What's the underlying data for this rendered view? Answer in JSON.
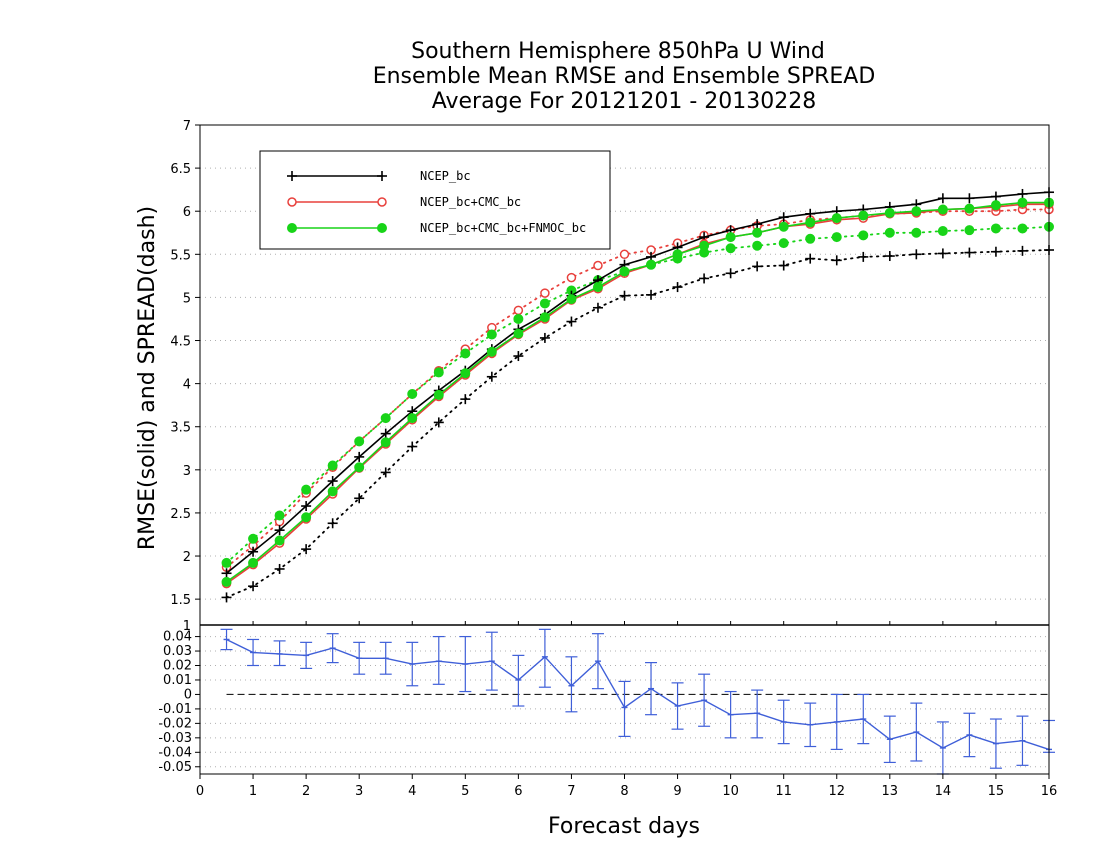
{
  "title": {
    "line1": "Southern Hemisphere 850hPa U Wind",
    "line2": "Ensemble Mean RMSE and Ensemble SPREAD",
    "line3": "Average For 20121201 - 20130228"
  },
  "colors": {
    "ncep_bc": "#000000",
    "ncep_cmc": "#e8403c",
    "ncep_cmc_fnmoc": "#18d418",
    "diff": "#3f5fd8",
    "zero_line": "#000000",
    "grid": "#b0b0b0"
  },
  "chart_data": [
    {
      "type": "line",
      "title": "Southern Hemisphere 850hPa U Wind Ensemble Mean RMSE and Ensemble SPREAD Average For 20121201 - 20130228",
      "ylabel": "RMSE(solid) and SPREAD(dash)",
      "xlim": [
        0,
        16
      ],
      "ylim": [
        1.2,
        7
      ],
      "yticks": [
        "1.5",
        "2",
        "2.5",
        "3",
        "3.5",
        "4",
        "4.5",
        "5",
        "5.5",
        "6",
        "6.5",
        "7"
      ],
      "grid": "horizontal dotted",
      "legend_position": "top-left",
      "x": [
        0.5,
        1,
        1.5,
        2,
        2.5,
        3,
        3.5,
        4,
        4.5,
        5,
        5.5,
        6,
        6.5,
        7,
        7.5,
        8,
        8.5,
        9,
        9.5,
        10,
        10.5,
        11,
        11.5,
        12,
        12.5,
        13,
        13.5,
        14,
        14.5,
        15,
        15.5,
        16
      ],
      "series": [
        {
          "name": "NCEP_bc",
          "style": "solid",
          "marker": "plus",
          "values": [
            1.8,
            2.05,
            2.3,
            2.58,
            2.87,
            3.15,
            3.42,
            3.68,
            3.92,
            4.15,
            4.4,
            4.63,
            4.8,
            5.02,
            5.2,
            5.38,
            5.47,
            5.58,
            5.7,
            5.78,
            5.85,
            5.93,
            5.97,
            6.0,
            6.02,
            6.05,
            6.08,
            6.15,
            6.15,
            6.17,
            6.2,
            6.22
          ]
        },
        {
          "name": "NCEP_bc",
          "style": "dash",
          "marker": "plus",
          "values": [
            1.52,
            1.65,
            1.85,
            2.08,
            2.38,
            2.67,
            2.97,
            3.27,
            3.55,
            3.82,
            4.08,
            4.32,
            4.53,
            4.72,
            4.88,
            5.02,
            5.03,
            5.12,
            5.22,
            5.28,
            5.36,
            5.37,
            5.45,
            5.43,
            5.47,
            5.48,
            5.5,
            5.51,
            5.52,
            5.53,
            5.54,
            5.55
          ]
        },
        {
          "name": "NCEP_bc+CMC_bc",
          "style": "solid",
          "marker": "open-circle",
          "values": [
            1.68,
            1.9,
            2.15,
            2.43,
            2.72,
            3.02,
            3.3,
            3.58,
            3.85,
            4.1,
            4.35,
            4.57,
            4.75,
            4.97,
            5.1,
            5.28,
            5.38,
            5.5,
            5.62,
            5.7,
            5.75,
            5.82,
            5.85,
            5.9,
            5.92,
            5.97,
            5.98,
            6.02,
            6.03,
            6.05,
            6.08,
            6.08
          ]
        },
        {
          "name": "NCEP_bc+CMC_bc",
          "style": "dash",
          "marker": "open-circle",
          "values": [
            1.87,
            2.12,
            2.4,
            2.73,
            3.03,
            3.33,
            3.6,
            3.88,
            4.15,
            4.4,
            4.65,
            4.85,
            5.05,
            5.23,
            5.37,
            5.5,
            5.55,
            5.63,
            5.72,
            5.78,
            5.83,
            5.85,
            5.9,
            5.92,
            5.95,
            5.97,
            5.98,
            6.0,
            6.0,
            6.0,
            6.02,
            6.02
          ]
        },
        {
          "name": "NCEP_bc+CMC_bc+FNMOC_bc",
          "style": "solid",
          "marker": "filled-circle",
          "values": [
            1.7,
            1.92,
            2.18,
            2.45,
            2.75,
            3.03,
            3.32,
            3.6,
            3.87,
            4.12,
            4.37,
            4.58,
            4.77,
            4.98,
            5.12,
            5.3,
            5.38,
            5.5,
            5.6,
            5.7,
            5.75,
            5.82,
            5.87,
            5.92,
            5.95,
            5.98,
            6.0,
            6.02,
            6.03,
            6.07,
            6.1,
            6.1
          ]
        },
        {
          "name": "NCEP_bc+CMC_bc+FNMOC_bc",
          "style": "dash",
          "marker": "filled-circle",
          "values": [
            1.92,
            2.2,
            2.47,
            2.77,
            3.05,
            3.33,
            3.6,
            3.88,
            4.13,
            4.35,
            4.57,
            4.75,
            4.93,
            5.08,
            5.2,
            5.3,
            5.38,
            5.45,
            5.52,
            5.57,
            5.6,
            5.63,
            5.68,
            5.7,
            5.72,
            5.75,
            5.75,
            5.77,
            5.78,
            5.8,
            5.8,
            5.82
          ]
        }
      ]
    },
    {
      "type": "line",
      "xlabel": "Forecast days",
      "xlim": [
        0,
        16
      ],
      "ylim": [
        -0.055,
        0.048
      ],
      "xticks": [
        "0",
        "1",
        "2",
        "3",
        "4",
        "5",
        "6",
        "7",
        "8",
        "9",
        "10",
        "11",
        "12",
        "13",
        "14",
        "15",
        "16"
      ],
      "yticks": [
        "-0.05",
        "-0.04",
        "-0.03",
        "-0.02",
        "-0.01",
        "0",
        "0.01",
        "0.02",
        "0.03",
        "0.04"
      ],
      "top_tick": "1",
      "grid": "horizontal dotted",
      "zero_line": "dashed",
      "x": [
        0.5,
        1,
        1.5,
        2,
        2.5,
        3,
        3.5,
        4,
        4.5,
        5,
        5.5,
        6,
        6.5,
        7,
        7.5,
        8,
        8.5,
        9,
        9.5,
        10,
        10.5,
        11,
        11.5,
        12,
        12.5,
        13,
        13.5,
        14,
        14.5,
        15,
        15.5,
        16
      ],
      "values": [
        0.038,
        0.029,
        0.028,
        0.027,
        0.032,
        0.025,
        0.025,
        0.021,
        0.023,
        0.021,
        0.023,
        0.01,
        0.026,
        0.006,
        0.023,
        -0.009,
        0.004,
        -0.008,
        -0.004,
        -0.014,
        -0.013,
        -0.019,
        -0.021,
        -0.019,
        -0.017,
        -0.031,
        -0.026,
        -0.037,
        -0.028,
        -0.034,
        -0.032,
        -0.038
      ],
      "error_low": [
        0.031,
        0.02,
        0.02,
        0.018,
        0.022,
        0.014,
        0.014,
        0.006,
        0.007,
        0.002,
        0.003,
        -0.008,
        0.005,
        -0.012,
        0.004,
        -0.029,
        -0.014,
        -0.024,
        -0.022,
        -0.03,
        -0.03,
        -0.034,
        -0.036,
        -0.038,
        -0.034,
        -0.047,
        -0.046,
        -0.055,
        -0.043,
        -0.051,
        -0.049,
        -0.04
      ],
      "error_high": [
        0.045,
        0.038,
        0.037,
        0.036,
        0.042,
        0.036,
        0.036,
        0.036,
        0.04,
        0.04,
        0.043,
        0.027,
        0.045,
        0.026,
        0.042,
        0.009,
        0.022,
        0.008,
        0.014,
        0.002,
        0.003,
        -0.004,
        -0.006,
        -0.0,
        -0.0,
        -0.015,
        -0.006,
        -0.019,
        -0.013,
        -0.017,
        -0.015,
        -0.018
      ]
    }
  ]
}
